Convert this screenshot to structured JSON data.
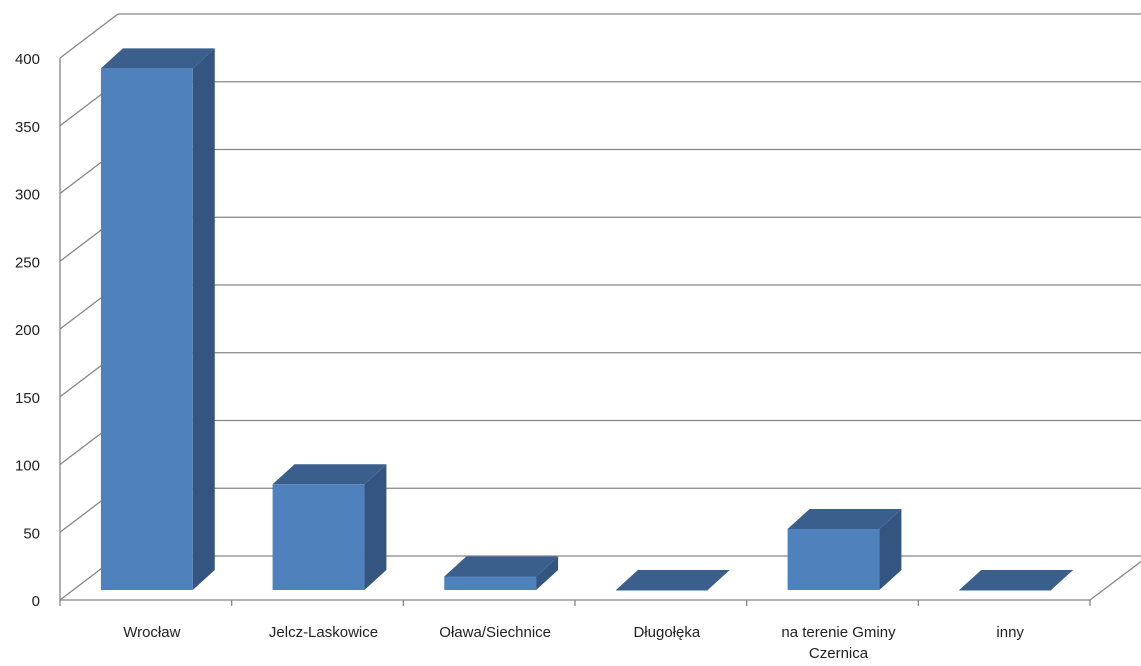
{
  "chart_data": {
    "type": "bar",
    "title": "",
    "xlabel": "",
    "ylabel": "",
    "categories": [
      "Wrocław",
      "Jelcz-Laskowice",
      "Oława/Siechnice",
      "Długołęka",
      "na terenie Gminy Czernica",
      "inny"
    ],
    "category_lines": [
      [
        "Wrocław"
      ],
      [
        "Jelcz-Laskowice"
      ],
      [
        "Oława/Siechnice"
      ],
      [
        "Długołęka"
      ],
      [
        "na terenie Gminy",
        "Czernica"
      ],
      [
        "inny"
      ]
    ],
    "values": [
      385,
      78,
      10,
      0,
      45,
      0
    ],
    "ylim": [
      0,
      400
    ],
    "yticks": [
      0,
      50,
      100,
      150,
      200,
      250,
      300,
      350,
      400
    ],
    "grid": true,
    "legend": "none",
    "style": "3d-column",
    "colors": {
      "bar_front": "#4f81bd",
      "bar_top": "#3a5f8c",
      "bar_side": "#34557f",
      "gridline": "#868686",
      "axis_text": "#222222"
    }
  }
}
